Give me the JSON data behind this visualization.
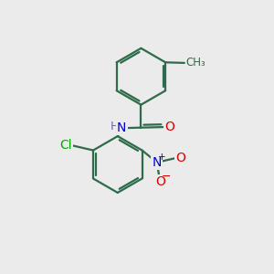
{
  "background_color": "#ebebeb",
  "bond_color": "#2d6b4a",
  "bond_width": 1.6,
  "atom_colors": {
    "O": "#dd0000",
    "N": "#0000cc",
    "Cl": "#00aa00",
    "H": "#6666bb",
    "C": "#2d6b4a"
  },
  "font_size_atoms": 10,
  "font_size_h": 9,
  "font_size_ch3": 8.5
}
